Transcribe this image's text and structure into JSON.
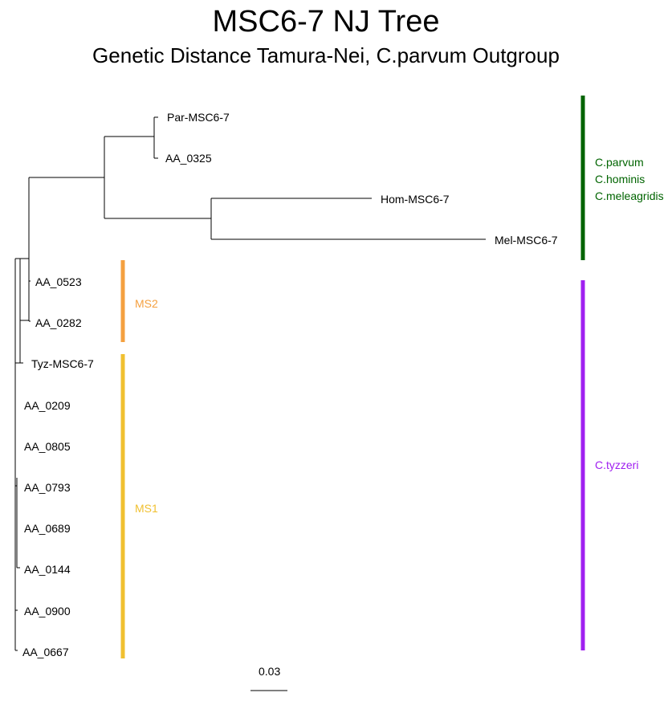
{
  "title": "MSC6-7 NJ Tree",
  "subtitle": "Genetic Distance Tamura-Nei, C.parvum Outgroup",
  "tips": [
    "Par-MSC6-7",
    "AA_0325",
    "Hom-MSC6-7",
    "Mel-MSC6-7",
    "AA_0523",
    "AA_0282",
    "Tyz-MSC6-7",
    "AA_0209",
    "AA_0805",
    "AA_0793",
    "AA_0689",
    "AA_0144",
    "AA_0900",
    "AA_0667"
  ],
  "clades": [
    {
      "label": "MS2",
      "color": "#f4a040"
    },
    {
      "label": "MS1",
      "color": "#f0c030"
    },
    {
      "label_lines": [
        "C.parvum",
        "C.hominis",
        "C.meleagridis"
      ],
      "color": "#006400"
    },
    {
      "label": "C.tyzzeri",
      "color": "#a020f0"
    }
  ],
  "scale_bar": {
    "label": "0.03"
  }
}
